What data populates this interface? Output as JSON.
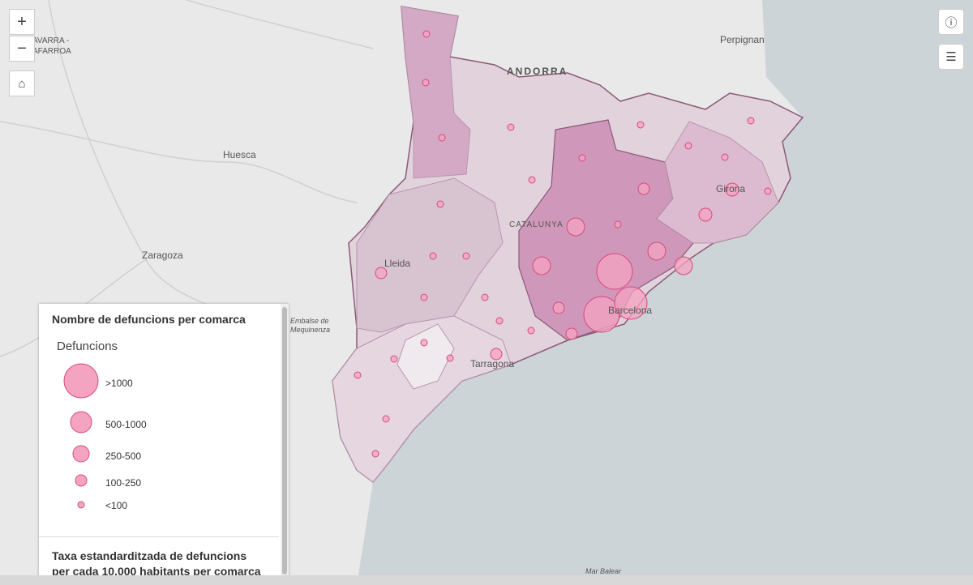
{
  "map": {
    "places": {
      "navarra": "AVARRA -",
      "navarra_2": "AFARROA",
      "huesca": "Huesca",
      "zaragoza": "Zaragoza",
      "andorra": "ANDORRA",
      "perpignan": "Perpignan",
      "lleida": "Lleida",
      "girona": "Girona",
      "barcelona": "Barcelona",
      "tarragona": "Tarragona",
      "catalunya": "CATALUNYA",
      "embalse": "Embalse de",
      "mequinenza": "Mequinenza",
      "mar_balear": "Mar Balear"
    }
  },
  "legend": {
    "title": "Nombre de defuncions per comarca",
    "field": "Defuncions",
    "classes": [
      ">1000",
      "500-1000",
      "250-500",
      "100-250",
      "<100"
    ],
    "second_title": "Taxa estandarditzada de defuncions per cada 10.000 habitants per comarca"
  }
}
